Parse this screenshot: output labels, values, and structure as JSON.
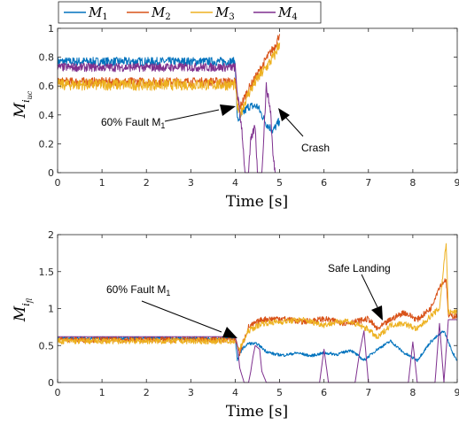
{
  "legend": {
    "entries": [
      {
        "label": "M",
        "sub": "1",
        "color": "#0072BD"
      },
      {
        "label": "M",
        "sub": "2",
        "color": "#D95319"
      },
      {
        "label": "M",
        "sub": "3",
        "color": "#EDB120"
      },
      {
        "label": "M",
        "sub": "4",
        "color": "#7E2F8E"
      }
    ]
  },
  "chart_data": [
    {
      "type": "line",
      "ylabel_main": "M",
      "ylabel_sub": "i",
      "ylabel_subsub": "uc",
      "xlabel": "Time [s]",
      "xlim": [
        0,
        9
      ],
      "ylim": [
        0,
        1
      ],
      "xticks": [
        0,
        1,
        2,
        3,
        4,
        5,
        6,
        7,
        8,
        9
      ],
      "yticks": [
        0,
        0.2,
        0.4,
        0.6,
        0.8,
        1
      ],
      "xtick_labels": [
        "0",
        "1",
        "2",
        "3",
        "4",
        "5",
        "6",
        "7",
        "8",
        "9"
      ],
      "ytick_labels": [
        "0",
        "0.2",
        "0.4",
        "0.6",
        "0.8",
        "1"
      ],
      "series": [
        {
          "name": "M1",
          "color": "#0072BD",
          "x": [
            0,
            4.0,
            4.05,
            4.15,
            4.3,
            4.5,
            4.7,
            4.85,
            5.0
          ],
          "y": [
            0.77,
            0.77,
            0.36,
            0.4,
            0.46,
            0.46,
            0.34,
            0.29,
            0.36
          ],
          "noise": 0.03
        },
        {
          "name": "M2",
          "color": "#D95319",
          "x": [
            0,
            4.0,
            4.05,
            4.1,
            4.3,
            4.5,
            4.7,
            4.9,
            5.0
          ],
          "y": [
            0.63,
            0.63,
            0.5,
            0.45,
            0.58,
            0.68,
            0.79,
            0.88,
            0.96
          ],
          "noise": 0.03
        },
        {
          "name": "M3",
          "color": "#EDB120",
          "x": [
            0,
            4.0,
            4.05,
            4.1,
            4.3,
            4.5,
            4.7,
            4.9,
            5.0
          ],
          "y": [
            0.61,
            0.61,
            0.45,
            0.4,
            0.55,
            0.65,
            0.73,
            0.82,
            0.9
          ],
          "noise": 0.04
        },
        {
          "name": "M4",
          "color": "#7E2F8E",
          "x": [
            0,
            4.0,
            4.05,
            4.15,
            4.22,
            4.3,
            4.35,
            4.45,
            4.5,
            4.6,
            4.7,
            4.8,
            4.85,
            4.9
          ],
          "y": [
            0.73,
            0.73,
            0.55,
            0.3,
            0.0,
            0.0,
            0.22,
            0.33,
            0.0,
            0.0,
            0.6,
            0.42,
            0.12,
            0.0
          ],
          "noise": 0.03
        }
      ],
      "annotations": [
        {
          "text": "60% Fault M",
          "sub": "1",
          "x": 4.05,
          "y": 0.43
        },
        {
          "text": "Crash",
          "x": 4.97,
          "y": 0.44
        }
      ]
    },
    {
      "type": "line",
      "ylabel_main": "M",
      "ylabel_sub": "i",
      "ylabel_subsub": "fl",
      "xlabel": "Time [s]",
      "xlim": [
        0,
        9
      ],
      "ylim": [
        0,
        2
      ],
      "xticks": [
        0,
        1,
        2,
        3,
        4,
        5,
        6,
        7,
        8,
        9
      ],
      "yticks": [
        0,
        0.5,
        1,
        1.5,
        2
      ],
      "xtick_labels": [
        "0",
        "1",
        "2",
        "3",
        "4",
        "5",
        "6",
        "7",
        "8",
        "9"
      ],
      "ytick_labels": [
        "0",
        "0.5",
        "1",
        "1.5",
        "2"
      ],
      "series": [
        {
          "name": "M1",
          "color": "#0072BD",
          "x": [
            0,
            4.0,
            4.05,
            4.15,
            4.3,
            4.5,
            4.7,
            4.9,
            5.1,
            5.4,
            5.7,
            6.0,
            6.3,
            6.6,
            6.9,
            7.2,
            7.5,
            7.8,
            8.1,
            8.4,
            8.7,
            8.9,
            9.0
          ],
          "y": [
            0.6,
            0.6,
            0.3,
            0.45,
            0.53,
            0.52,
            0.42,
            0.38,
            0.37,
            0.4,
            0.36,
            0.4,
            0.38,
            0.44,
            0.3,
            0.45,
            0.56,
            0.4,
            0.3,
            0.55,
            0.7,
            0.4,
            0.3
          ],
          "noise": 0.02
        },
        {
          "name": "M2",
          "color": "#D95319",
          "x": [
            0,
            4.0,
            4.1,
            4.3,
            4.6,
            5.0,
            5.5,
            6.0,
            6.5,
            7.0,
            7.2,
            7.5,
            7.8,
            8.1,
            8.4,
            8.6,
            8.75,
            8.8,
            9.0
          ],
          "y": [
            0.58,
            0.58,
            0.4,
            0.75,
            0.85,
            0.87,
            0.82,
            0.86,
            0.8,
            0.86,
            0.72,
            0.85,
            0.95,
            0.85,
            1.0,
            1.3,
            1.4,
            0.9,
            0.9
          ],
          "noise": 0.04
        },
        {
          "name": "M3",
          "color": "#EDB120",
          "x": [
            0,
            4.0,
            4.1,
            4.3,
            4.6,
            5.0,
            5.5,
            6.0,
            6.5,
            7.0,
            7.2,
            7.5,
            7.8,
            8.1,
            8.4,
            8.6,
            8.75,
            8.8,
            9.0
          ],
          "y": [
            0.56,
            0.56,
            0.45,
            0.7,
            0.8,
            0.82,
            0.85,
            0.78,
            0.84,
            0.72,
            0.6,
            0.78,
            0.8,
            0.72,
            0.9,
            1.0,
            1.9,
            0.95,
            0.95
          ],
          "noise": 0.04
        },
        {
          "name": "M4",
          "color": "#7E2F8E",
          "x": [
            0,
            4.0,
            4.05,
            4.1,
            4.2,
            4.3,
            4.35,
            4.4,
            4.45,
            4.55,
            4.6,
            4.7,
            4.8,
            5.0,
            5.1,
            5.9,
            6.0,
            6.1,
            6.3,
            6.7,
            6.8,
            6.9,
            7.0,
            7.9,
            8.0,
            8.1,
            8.3,
            8.5,
            8.6,
            8.7,
            8.8,
            8.9,
            9.0
          ],
          "y": [
            0.62,
            0.62,
            0.5,
            0.2,
            0.0,
            0.0,
            0.15,
            0.35,
            0.5,
            0.45,
            0.15,
            0.0,
            0.0,
            0.0,
            0.0,
            0.0,
            0.45,
            0.0,
            0.0,
            0.0,
            0.4,
            0.7,
            0.0,
            0.0,
            0.55,
            0.0,
            0.0,
            0.0,
            0.8,
            0.0,
            0.85,
            0.85,
            0.85
          ],
          "noise": 0.0
        }
      ],
      "annotations": [
        {
          "text": "60% Fault M",
          "sub": "1",
          "x": 4.02,
          "y": 0.52
        },
        {
          "text": "Safe Landing",
          "x": 7.18,
          "y": 0.85
        }
      ]
    }
  ]
}
